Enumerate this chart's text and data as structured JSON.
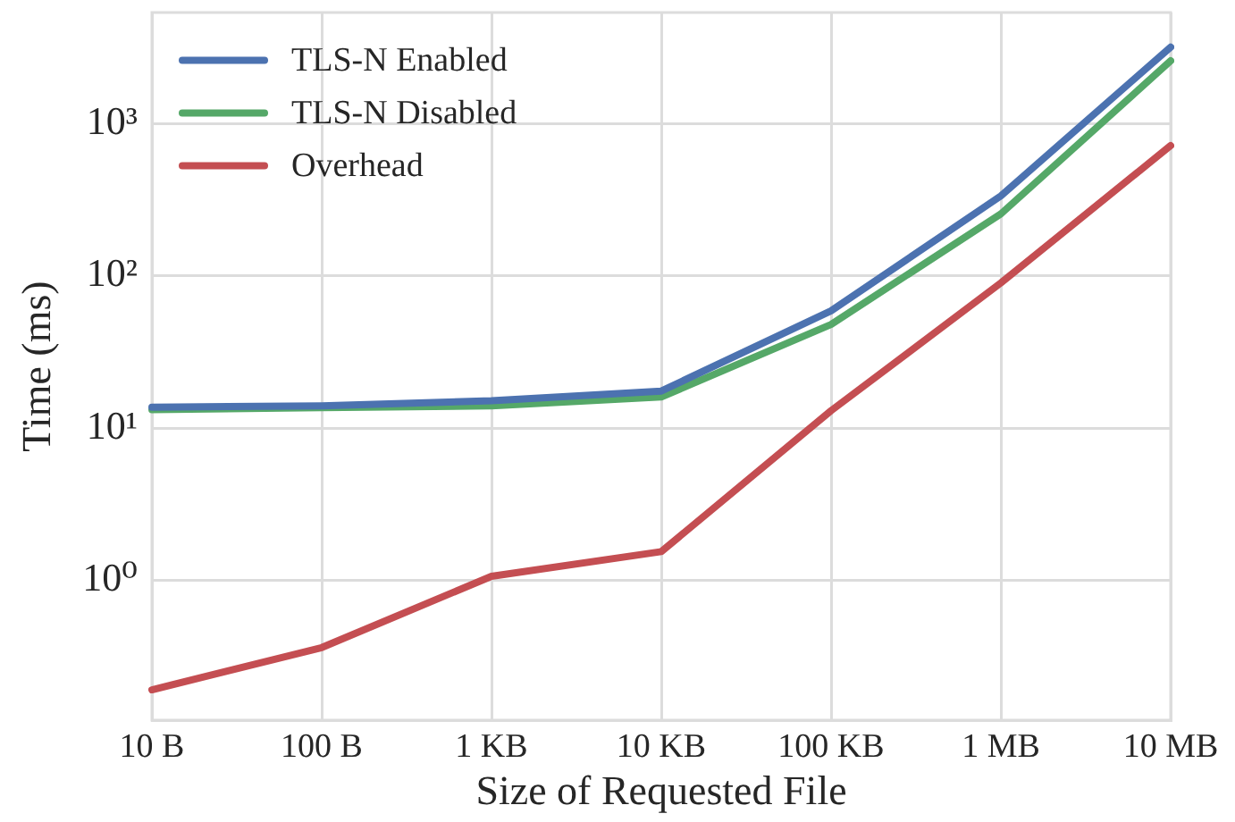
{
  "chart_data": {
    "type": "line",
    "xlabel": "Size of Requested File",
    "ylabel": "Time (ms)",
    "categories": [
      "10 B",
      "100 B",
      "1 KB",
      "10 KB",
      "100 KB",
      "1 MB",
      "10 MB"
    ],
    "series": [
      {
        "name": "TLS-N Enabled",
        "color": "#4c72b0",
        "values": [
          13.7,
          14.0,
          15.1,
          17.5,
          59,
          336,
          3200
        ]
      },
      {
        "name": "TLS-N Disabled",
        "color": "#55a868",
        "values": [
          13.2,
          13.6,
          14.0,
          16.0,
          48,
          256,
          2600
        ]
      },
      {
        "name": "Overhead",
        "color": "#c44e52",
        "values": [
          0.19,
          0.36,
          1.06,
          1.54,
          13.0,
          90,
          720
        ]
      }
    ],
    "ylim": [
      0.12,
      5400
    ],
    "yticks": [
      {
        "value": 1,
        "label": "10⁰"
      },
      {
        "value": 10,
        "label": "10¹"
      },
      {
        "value": 100,
        "label": "10²"
      },
      {
        "value": 1000,
        "label": "10³"
      }
    ],
    "log": true,
    "grid": true,
    "legend": "top left",
    "line_style": "solid"
  }
}
